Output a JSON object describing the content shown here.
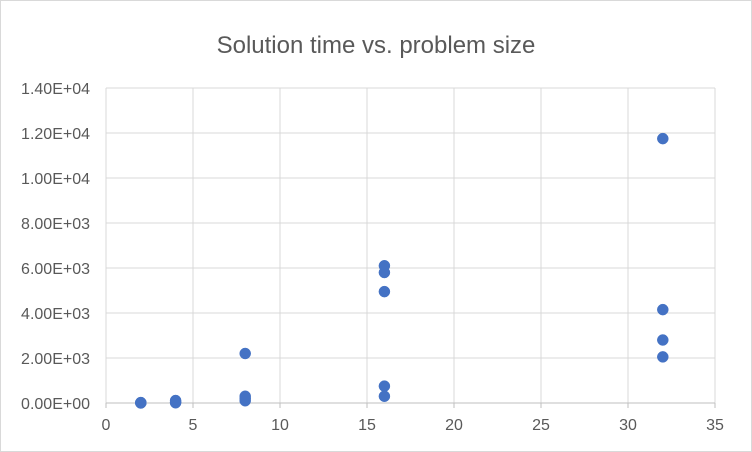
{
  "chart_data": {
    "type": "scatter",
    "title": "Solution time vs. problem size",
    "xlabel": "",
    "ylabel": "",
    "xlim": [
      0,
      35
    ],
    "ylim": [
      0,
      14000
    ],
    "x_ticks": [
      0,
      5,
      10,
      15,
      20,
      25,
      30,
      35
    ],
    "x_tick_labels": [
      "0",
      "5",
      "10",
      "15",
      "20",
      "25",
      "30",
      "35"
    ],
    "y_ticks": [
      0,
      2000,
      4000,
      6000,
      8000,
      10000,
      12000,
      14000
    ],
    "y_tick_labels": [
      "0.00E+00",
      "2.00E+03",
      "4.00E+03",
      "6.00E+03",
      "8.00E+03",
      "1.00E+04",
      "1.20E+04",
      "1.40E+04"
    ],
    "grid": true,
    "legend": "none",
    "marker_color": "#4472c4",
    "grid_color": "#d9d9d9",
    "series": [
      {
        "x": [
          2,
          2,
          2,
          4,
          4,
          4,
          8,
          8,
          8,
          8,
          16,
          16,
          16,
          16,
          16,
          32,
          32,
          32,
          32
        ],
        "y": [
          0,
          10,
          20,
          10,
          40,
          110,
          100,
          200,
          300,
          2200,
          300,
          750,
          4950,
          5800,
          6100,
          2050,
          2800,
          4150,
          11750
        ]
      }
    ]
  }
}
